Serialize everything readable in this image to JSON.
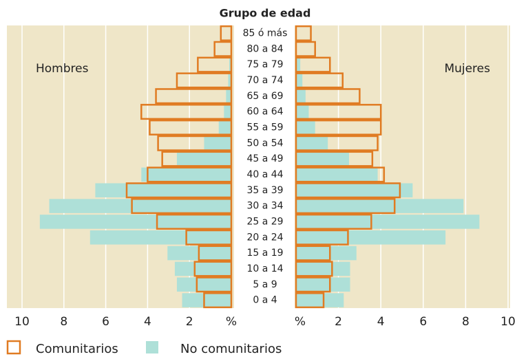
{
  "chart_data": {
    "type": "pyramid",
    "title": "Grupo de edad",
    "left_label": "Hombres",
    "right_label": "Mujeres",
    "categories": [
      "85 ó más",
      "80 a 84",
      "75 a 79",
      "70 a 74",
      "65 a 69",
      "60 a 64",
      "55 a 59",
      "50 a 54",
      "45 a 49",
      "40 a 44",
      "35 a 39",
      "30 a 34",
      "25 a 29",
      "20 a 24",
      "15 a 19",
      "10 a 14",
      "5 a 9",
      "0 a 4"
    ],
    "series": [
      {
        "name": "No comunitarios",
        "color": "#aee0d8",
        "left": [
          0,
          0,
          0.1,
          0.15,
          0.25,
          0.35,
          0.6,
          1.3,
          2.6,
          4.3,
          6.5,
          8.7,
          9.15,
          6.75,
          3.05,
          2.7,
          2.6,
          2.35
        ],
        "right": [
          0,
          0,
          0.2,
          0.3,
          0.45,
          0.6,
          0.9,
          1.5,
          2.5,
          3.85,
          5.5,
          7.9,
          8.65,
          7.05,
          2.85,
          2.55,
          2.55,
          2.25
        ]
      },
      {
        "name": "Comunitarios",
        "color": "#e07b22",
        "left": [
          0.5,
          0.8,
          1.6,
          2.6,
          3.6,
          4.3,
          3.9,
          3.5,
          3.3,
          4.0,
          5.0,
          4.75,
          3.55,
          2.15,
          1.55,
          1.75,
          1.65,
          1.3
        ],
        "right": [
          0.7,
          0.9,
          1.6,
          2.2,
          3.0,
          4.0,
          4.0,
          3.85,
          3.6,
          4.15,
          4.9,
          4.65,
          3.55,
          2.45,
          1.6,
          1.7,
          1.6,
          1.3
        ]
      }
    ],
    "xlim": [
      0,
      10
    ],
    "xticks": [
      {
        "value": 0,
        "label": "%"
      },
      2,
      4,
      6,
      8,
      10
    ],
    "background": "#efe6c8",
    "grid": true
  }
}
